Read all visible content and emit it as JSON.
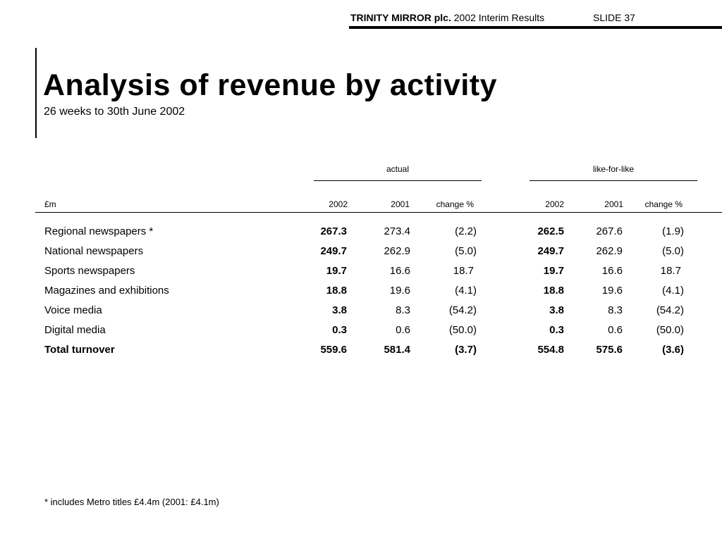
{
  "header": {
    "company": "TRINITY MIRROR plc.",
    "report": "2002 Interim Results",
    "slide": "SLIDE 37"
  },
  "title": "Analysis of revenue by activity",
  "subtitle": "26 weeks to 30th June 2002",
  "table": {
    "unit_label": "£m",
    "groups": [
      "actual",
      "like-for-like"
    ],
    "columns": [
      "2002",
      "2001",
      "change %",
      "2002",
      "2001",
      "change %"
    ],
    "rows": [
      {
        "label": "Regional newspapers *",
        "values": [
          "267.3",
          "273.4",
          "(2.2)",
          "262.5",
          "267.6",
          "(1.9)"
        ]
      },
      {
        "label": "National newspapers",
        "values": [
          "249.7",
          "262.9",
          "(5.0)",
          "249.7",
          "262.9",
          "(5.0)"
        ]
      },
      {
        "label": "Sports newspapers",
        "values": [
          "19.7",
          "16.6",
          "18.7",
          "19.7",
          "16.6",
          "18.7"
        ]
      },
      {
        "label": "Magazines and exhibitions",
        "values": [
          "18.8",
          "19.6",
          "(4.1)",
          "18.8",
          "19.6",
          "(4.1)"
        ]
      },
      {
        "label": "Voice media",
        "values": [
          "3.8",
          "8.3",
          "(54.2)",
          "3.8",
          "8.3",
          "(54.2)"
        ]
      },
      {
        "label": "Digital media",
        "values": [
          "0.3",
          "0.6",
          "(50.0)",
          "0.3",
          "0.6",
          "(50.0)"
        ]
      },
      {
        "label": "Total turnover",
        "values": [
          "559.6",
          "581.4",
          "(3.7)",
          "554.8",
          "575.6",
          "(3.6)"
        ]
      }
    ]
  },
  "footnote": "* includes Metro titles £4.4m (2001: £4.1m)"
}
